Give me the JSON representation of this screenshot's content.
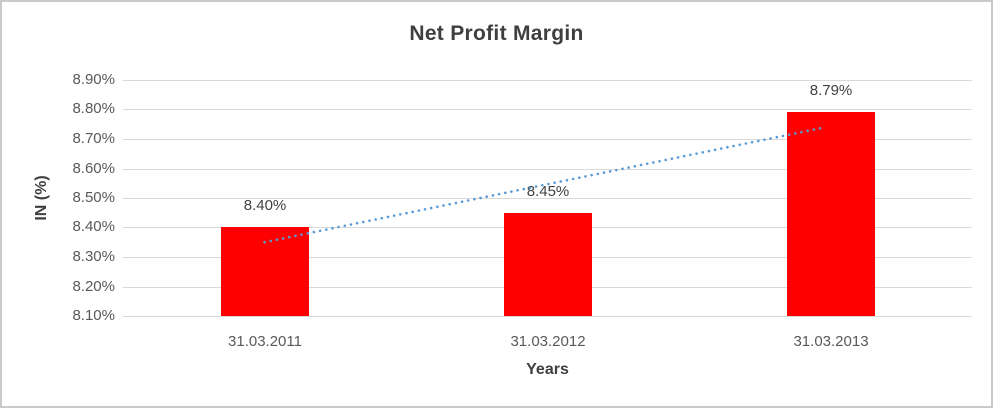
{
  "chart_data": {
    "type": "bar",
    "title": "Net Profit Margin",
    "xlabel": "Years",
    "ylabel": "IN (%)",
    "categories": [
      "31.03.2011",
      "31.03.2012",
      "31.03.2013"
    ],
    "values": [
      8.4,
      8.45,
      8.79
    ],
    "data_labels": [
      "8.40%",
      "8.45%",
      "8.79%"
    ],
    "yticks": [
      "8.90%",
      "8.80%",
      "8.70%",
      "8.60%",
      "8.50%",
      "8.40%",
      "8.30%",
      "8.20%",
      "8.10%"
    ],
    "ylim": [
      8.1,
      8.9
    ],
    "grid": true,
    "legend_position": "none",
    "bar_color": "#FF0000",
    "trendline": {
      "type": "linear",
      "style": "dotted",
      "color": "#5B9BD5",
      "endpoint_values": [
        8.35,
        8.74
      ]
    }
  }
}
